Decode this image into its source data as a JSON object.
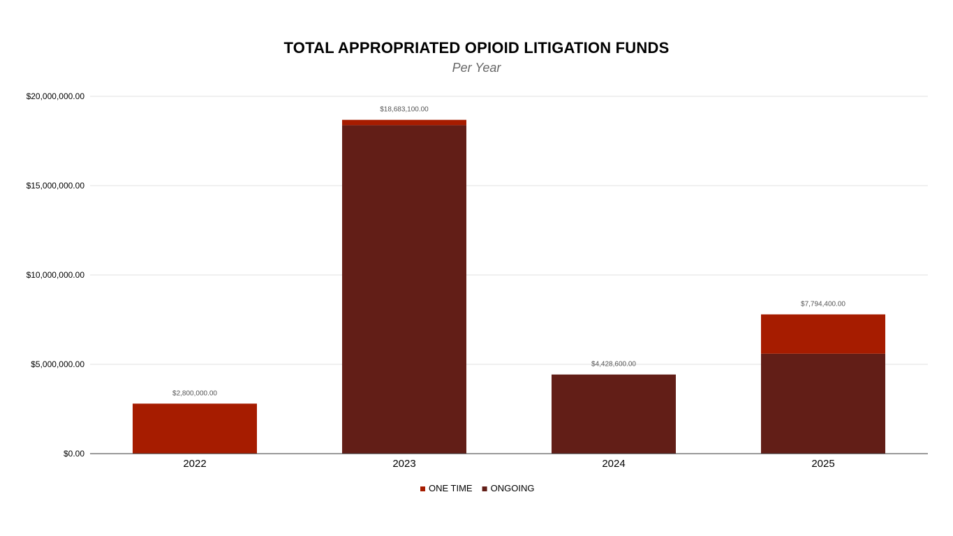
{
  "chart_data": {
    "type": "bar",
    "stacked": true,
    "title": "TOTAL APPROPRIATED OPIOID LITIGATION FUNDS",
    "subtitle": "Per Year",
    "xlabel": "",
    "ylabel": "",
    "categories": [
      "2022",
      "2023",
      "2024",
      "2025"
    ],
    "series": [
      {
        "name": "ONGOING",
        "color": "#621e17",
        "values": [
          0,
          18383100,
          4428600,
          5594400
        ]
      },
      {
        "name": "ONE TIME",
        "color": "#a61c00",
        "values": [
          2800000,
          300000,
          0,
          2200000
        ]
      }
    ],
    "totals_labels": [
      "$2,800,000.00",
      "$18,683,100.00",
      "$4,428,600.00",
      "$7,794,400.00"
    ],
    "ylim": [
      0,
      20000000
    ],
    "yticks": [
      0,
      5000000,
      10000000,
      15000000,
      20000000
    ],
    "ytick_labels": [
      "$0.00",
      "$5,000,000.00",
      "$10,000,000.00",
      "$15,000,000.00",
      "$20,000,000.00"
    ],
    "legend": {
      "position": "bottom",
      "entries": [
        "ONE TIME",
        "ONGOING"
      ]
    },
    "grid": true
  }
}
